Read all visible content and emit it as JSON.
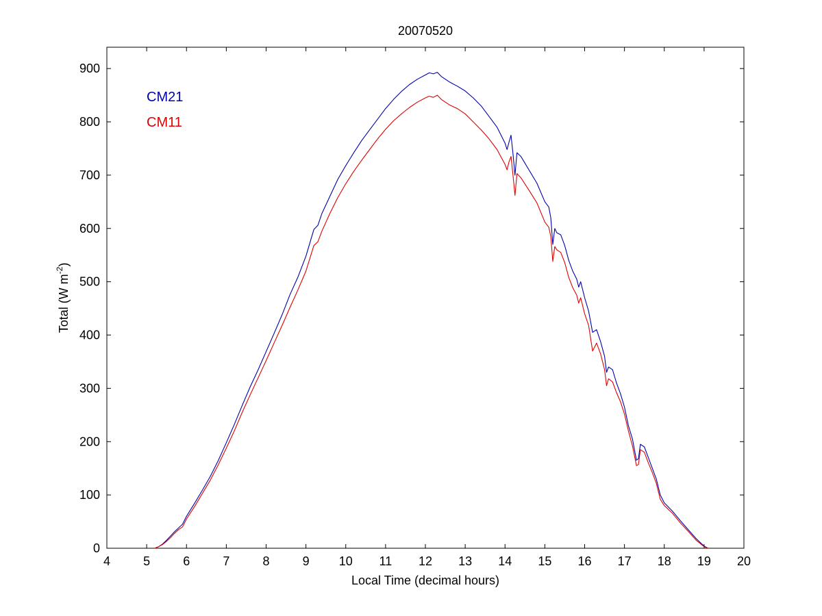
{
  "chart_data": {
    "type": "line",
    "title": "20070520",
    "xlabel": "Local Time (decimal hours)",
    "ylabel": {
      "main": "Total (W m",
      "sup": "-2",
      "close": ")"
    },
    "xlim": [
      4,
      20
    ],
    "ylim": [
      0,
      940
    ],
    "xticks": [
      4,
      5,
      6,
      7,
      8,
      9,
      10,
      11,
      12,
      13,
      14,
      15,
      16,
      17,
      18,
      19,
      20
    ],
    "yticks": [
      0,
      100,
      200,
      300,
      400,
      500,
      600,
      700,
      800,
      900
    ],
    "grid": false,
    "legend_position": "top-left",
    "series": [
      {
        "name": "CM21",
        "color": "#0000aa",
        "points": [
          [
            5.2,
            0
          ],
          [
            5.3,
            3
          ],
          [
            5.4,
            8
          ],
          [
            5.5,
            15
          ],
          [
            5.6,
            23
          ],
          [
            5.7,
            31
          ],
          [
            5.8,
            38
          ],
          [
            5.9,
            45
          ],
          [
            6.0,
            60
          ],
          [
            6.2,
            84
          ],
          [
            6.4,
            109
          ],
          [
            6.6,
            135
          ],
          [
            6.8,
            165
          ],
          [
            7.0,
            198
          ],
          [
            7.2,
            232
          ],
          [
            7.4,
            268
          ],
          [
            7.6,
            303
          ],
          [
            7.8,
            335
          ],
          [
            8.0,
            369
          ],
          [
            8.2,
            403
          ],
          [
            8.4,
            438
          ],
          [
            8.6,
            476
          ],
          [
            8.8,
            509
          ],
          [
            9.0,
            548
          ],
          [
            9.2,
            598
          ],
          [
            9.3,
            606
          ],
          [
            9.4,
            628
          ],
          [
            9.6,
            660
          ],
          [
            9.8,
            692
          ],
          [
            10.0,
            718
          ],
          [
            10.2,
            742
          ],
          [
            10.4,
            765
          ],
          [
            10.6,
            785
          ],
          [
            10.8,
            805
          ],
          [
            11.0,
            825
          ],
          [
            11.2,
            842
          ],
          [
            11.4,
            857
          ],
          [
            11.6,
            870
          ],
          [
            11.8,
            880
          ],
          [
            12.0,
            888
          ],
          [
            12.1,
            892
          ],
          [
            12.2,
            890
          ],
          [
            12.3,
            893
          ],
          [
            12.4,
            885
          ],
          [
            12.6,
            875
          ],
          [
            12.8,
            867
          ],
          [
            13.0,
            858
          ],
          [
            13.2,
            845
          ],
          [
            13.4,
            830
          ],
          [
            13.6,
            810
          ],
          [
            13.8,
            790
          ],
          [
            14.0,
            760
          ],
          [
            14.05,
            748
          ],
          [
            14.1,
            762
          ],
          [
            14.15,
            775
          ],
          [
            14.2,
            740
          ],
          [
            14.25,
            700
          ],
          [
            14.3,
            742
          ],
          [
            14.4,
            735
          ],
          [
            14.6,
            710
          ],
          [
            14.8,
            685
          ],
          [
            15.0,
            650
          ],
          [
            15.1,
            640
          ],
          [
            15.15,
            620
          ],
          [
            15.2,
            570
          ],
          [
            15.25,
            600
          ],
          [
            15.3,
            592
          ],
          [
            15.4,
            588
          ],
          [
            15.5,
            568
          ],
          [
            15.6,
            540
          ],
          [
            15.7,
            520
          ],
          [
            15.8,
            505
          ],
          [
            15.85,
            490
          ],
          [
            15.9,
            500
          ],
          [
            16.0,
            470
          ],
          [
            16.1,
            445
          ],
          [
            16.2,
            405
          ],
          [
            16.3,
            410
          ],
          [
            16.4,
            388
          ],
          [
            16.5,
            360
          ],
          [
            16.55,
            330
          ],
          [
            16.6,
            340
          ],
          [
            16.7,
            335
          ],
          [
            16.8,
            310
          ],
          [
            16.9,
            290
          ],
          [
            17.0,
            265
          ],
          [
            17.1,
            230
          ],
          [
            17.2,
            205
          ],
          [
            17.3,
            165
          ],
          [
            17.35,
            168
          ],
          [
            17.4,
            195
          ],
          [
            17.5,
            190
          ],
          [
            17.6,
            170
          ],
          [
            17.7,
            150
          ],
          [
            17.8,
            130
          ],
          [
            17.9,
            100
          ],
          [
            18.0,
            85
          ],
          [
            18.2,
            70
          ],
          [
            18.4,
            52
          ],
          [
            18.6,
            35
          ],
          [
            18.8,
            18
          ],
          [
            19.0,
            4
          ],
          [
            19.1,
            0
          ]
        ]
      },
      {
        "name": "CM11",
        "color": "#dd0000",
        "points": [
          [
            5.2,
            0
          ],
          [
            5.3,
            3
          ],
          [
            5.4,
            7
          ],
          [
            5.5,
            13
          ],
          [
            5.6,
            20
          ],
          [
            5.7,
            28
          ],
          [
            5.8,
            35
          ],
          [
            5.9,
            40
          ],
          [
            6.0,
            55
          ],
          [
            6.2,
            78
          ],
          [
            6.4,
            103
          ],
          [
            6.6,
            128
          ],
          [
            6.8,
            157
          ],
          [
            7.0,
            188
          ],
          [
            7.2,
            220
          ],
          [
            7.4,
            255
          ],
          [
            7.6,
            288
          ],
          [
            7.8,
            320
          ],
          [
            8.0,
            352
          ],
          [
            8.2,
            385
          ],
          [
            8.4,
            418
          ],
          [
            8.6,
            452
          ],
          [
            8.8,
            485
          ],
          [
            9.0,
            520
          ],
          [
            9.2,
            568
          ],
          [
            9.3,
            575
          ],
          [
            9.4,
            595
          ],
          [
            9.6,
            628
          ],
          [
            9.8,
            658
          ],
          [
            10.0,
            684
          ],
          [
            10.2,
            707
          ],
          [
            10.4,
            728
          ],
          [
            10.6,
            748
          ],
          [
            10.8,
            768
          ],
          [
            11.0,
            786
          ],
          [
            11.2,
            802
          ],
          [
            11.4,
            815
          ],
          [
            11.6,
            827
          ],
          [
            11.8,
            837
          ],
          [
            12.0,
            845
          ],
          [
            12.1,
            848
          ],
          [
            12.2,
            846
          ],
          [
            12.3,
            850
          ],
          [
            12.4,
            842
          ],
          [
            12.6,
            832
          ],
          [
            12.8,
            825
          ],
          [
            13.0,
            815
          ],
          [
            13.2,
            800
          ],
          [
            13.4,
            785
          ],
          [
            13.6,
            768
          ],
          [
            13.8,
            748
          ],
          [
            14.0,
            720
          ],
          [
            14.05,
            710
          ],
          [
            14.1,
            725
          ],
          [
            14.15,
            735
          ],
          [
            14.2,
            700
          ],
          [
            14.25,
            662
          ],
          [
            14.3,
            703
          ],
          [
            14.4,
            695
          ],
          [
            14.6,
            672
          ],
          [
            14.8,
            648
          ],
          [
            15.0,
            612
          ],
          [
            15.1,
            602
          ],
          [
            15.15,
            585
          ],
          [
            15.2,
            538
          ],
          [
            15.25,
            566
          ],
          [
            15.3,
            560
          ],
          [
            15.4,
            555
          ],
          [
            15.5,
            536
          ],
          [
            15.6,
            508
          ],
          [
            15.7,
            489
          ],
          [
            15.8,
            475
          ],
          [
            15.85,
            460
          ],
          [
            15.9,
            470
          ],
          [
            16.0,
            440
          ],
          [
            16.1,
            418
          ],
          [
            16.2,
            370
          ],
          [
            16.3,
            385
          ],
          [
            16.4,
            365
          ],
          [
            16.5,
            335
          ],
          [
            16.55,
            305
          ],
          [
            16.6,
            318
          ],
          [
            16.7,
            312
          ],
          [
            16.8,
            292
          ],
          [
            16.9,
            275
          ],
          [
            17.0,
            252
          ],
          [
            17.1,
            220
          ],
          [
            17.2,
            192
          ],
          [
            17.3,
            155
          ],
          [
            17.35,
            157
          ],
          [
            17.4,
            185
          ],
          [
            17.5,
            180
          ],
          [
            17.6,
            160
          ],
          [
            17.7,
            142
          ],
          [
            17.8,
            122
          ],
          [
            17.9,
            92
          ],
          [
            18.0,
            80
          ],
          [
            18.2,
            66
          ],
          [
            18.4,
            48
          ],
          [
            18.6,
            32
          ],
          [
            18.8,
            15
          ],
          [
            19.0,
            3
          ],
          [
            19.1,
            0
          ]
        ]
      }
    ]
  }
}
